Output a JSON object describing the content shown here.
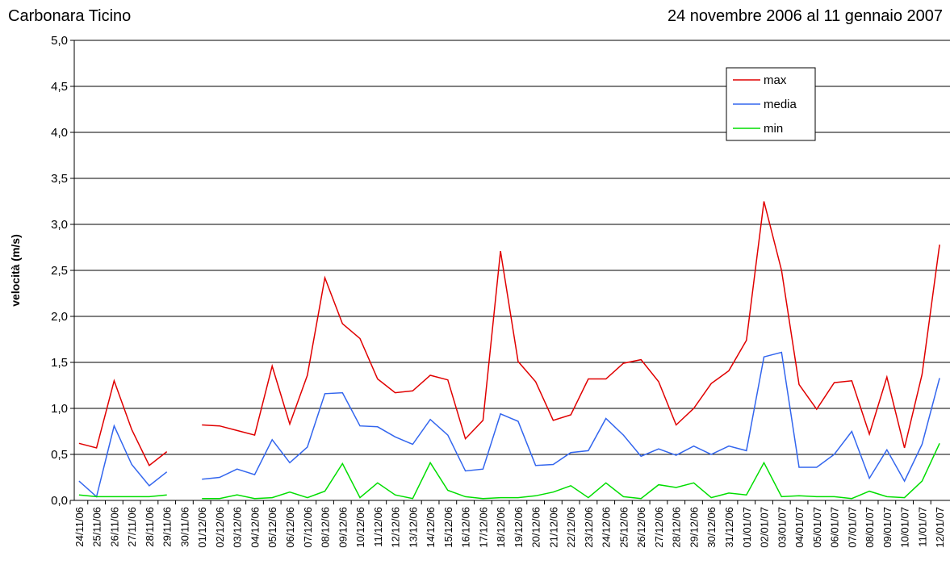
{
  "chart_data": {
    "type": "line",
    "title": "Carbonara Ticino",
    "subtitle": "24 novembre 2006 al 11 gennaio 2007",
    "y_label": "velocità (m/s)",
    "categories": [
      "24/11/06",
      "25/11/06",
      "26/11/06",
      "27/11/06",
      "28/11/06",
      "29/11/06",
      "30/11/06",
      "01/12/06",
      "02/12/06",
      "03/12/06",
      "04/12/06",
      "05/12/06",
      "06/12/06",
      "07/12/06",
      "08/12/06",
      "09/12/06",
      "10/12/06",
      "11/12/06",
      "12/12/06",
      "13/12/06",
      "14/12/06",
      "15/12/06",
      "16/12/06",
      "17/12/06",
      "18/12/06",
      "19/12/06",
      "20/12/06",
      "21/12/06",
      "22/12/06",
      "23/12/06",
      "24/12/06",
      "25/12/06",
      "26/12/06",
      "27/12/06",
      "28/12/06",
      "29/12/06",
      "30/12/06",
      "31/12/06",
      "01/01/07",
      "02/01/07",
      "03/01/07",
      "04/01/07",
      "05/01/07",
      "06/01/07",
      "07/01/07",
      "08/01/07",
      "09/01/07",
      "10/01/07",
      "11/01/07",
      "12/01/07"
    ],
    "series": [
      {
        "name": "max",
        "color": "#e00000",
        "values": [
          0.62,
          0.57,
          1.3,
          0.77,
          0.38,
          0.53,
          null,
          0.82,
          0.81,
          0.76,
          0.71,
          1.46,
          0.83,
          1.36,
          2.42,
          1.92,
          1.76,
          1.32,
          1.17,
          1.19,
          1.36,
          1.31,
          0.67,
          0.87,
          2.71,
          1.51,
          1.29,
          0.87,
          0.93,
          1.32,
          1.32,
          1.49,
          1.53,
          1.29,
          0.82,
          1.0,
          1.27,
          1.41,
          1.74,
          3.25,
          2.5,
          1.26,
          0.99,
          1.28,
          1.3,
          0.72,
          1.34,
          0.57,
          1.37,
          2.78
        ]
      },
      {
        "name": "media",
        "color": "#3366ee",
        "values": [
          0.21,
          0.04,
          0.81,
          0.39,
          0.16,
          0.31,
          null,
          0.23,
          0.25,
          0.34,
          0.28,
          0.66,
          0.41,
          0.58,
          1.16,
          1.17,
          0.81,
          0.8,
          0.69,
          0.61,
          0.88,
          0.71,
          0.32,
          0.34,
          0.94,
          0.86,
          0.38,
          0.39,
          0.52,
          0.54,
          0.89,
          0.71,
          0.48,
          0.56,
          0.49,
          0.59,
          0.5,
          0.59,
          0.54,
          1.56,
          1.61,
          0.36,
          0.36,
          0.5,
          0.75,
          0.24,
          0.55,
          0.21,
          0.61,
          1.33
        ]
      },
      {
        "name": "min",
        "color": "#00dd00",
        "values": [
          0.06,
          0.04,
          0.04,
          0.04,
          0.04,
          0.06,
          null,
          0.02,
          0.02,
          0.06,
          0.02,
          0.03,
          0.09,
          0.03,
          0.1,
          0.4,
          0.03,
          0.19,
          0.06,
          0.02,
          0.41,
          0.11,
          0.04,
          0.02,
          0.03,
          0.03,
          0.05,
          0.09,
          0.16,
          0.03,
          0.19,
          0.04,
          0.02,
          0.17,
          0.14,
          0.19,
          0.03,
          0.08,
          0.06,
          0.41,
          0.04,
          0.05,
          0.04,
          0.04,
          0.02,
          0.1,
          0.04,
          0.03,
          0.21,
          0.62
        ]
      }
    ],
    "ylim": [
      0,
      5
    ],
    "yticks": [
      {
        "value": 0,
        "label": "0,0"
      },
      {
        "value": 0.5,
        "label": "0,5"
      },
      {
        "value": 1,
        "label": "1,0"
      },
      {
        "value": 1.5,
        "label": "1,5"
      },
      {
        "value": 2,
        "label": "2,0"
      },
      {
        "value": 2.5,
        "label": "2,5"
      },
      {
        "value": 3,
        "label": "3,0"
      },
      {
        "value": 3.5,
        "label": "3,5"
      },
      {
        "value": 4,
        "label": "4,0"
      },
      {
        "value": 4.5,
        "label": "4,5"
      },
      {
        "value": 5,
        "label": "5,0"
      }
    ],
    "grid": true,
    "legend": "upper-right"
  }
}
